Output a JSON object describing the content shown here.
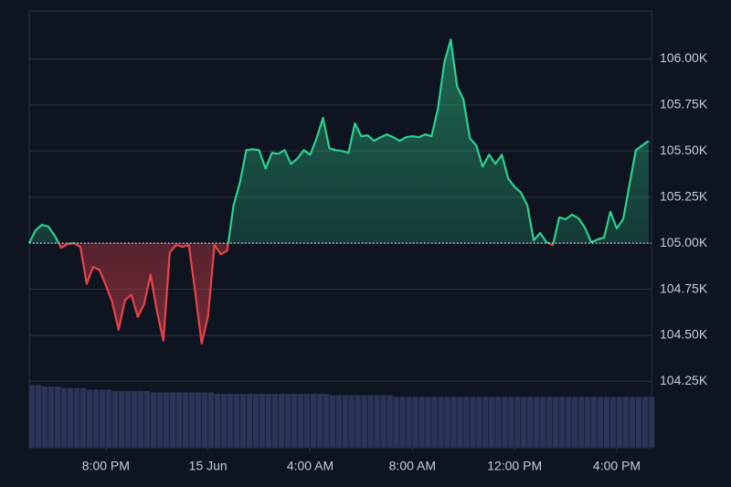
{
  "chart_data": {
    "type": "line",
    "x": [
      -7,
      -6.75,
      -6.5,
      -6.25,
      -6,
      -5.75,
      -5.5,
      -5.25,
      -5,
      -4.75,
      -4.5,
      -4.25,
      -4,
      -3.75,
      -3.5,
      -3.25,
      -3,
      -2.75,
      -2.5,
      -2.25,
      -2,
      -1.75,
      -1.5,
      -1.25,
      -1,
      -0.75,
      -0.5,
      -0.25,
      0,
      0.25,
      0.5,
      0.75,
      1,
      1.25,
      1.5,
      1.75,
      2,
      2.25,
      2.5,
      2.75,
      3,
      3.25,
      3.5,
      3.75,
      4,
      4.25,
      4.5,
      4.75,
      5,
      5.25,
      5.5,
      5.75,
      6,
      6.25,
      6.5,
      6.75,
      7,
      7.25,
      7.5,
      7.75,
      8,
      8.25,
      8.5,
      8.75,
      9,
      9.25,
      9.5,
      9.75,
      10,
      10.25,
      10.5,
      10.75,
      11,
      11.25,
      11.5,
      11.75,
      12,
      12.25,
      12.5,
      12.75,
      13,
      13.25,
      13.5,
      13.75,
      14,
      14.25,
      14.5,
      14.75,
      15,
      15.25,
      15.5,
      15.75,
      16,
      16.25,
      16.5,
      16.75,
      17,
      17.25
    ],
    "series": [
      {
        "color": "#2fd08c",
        "axis": "y",
        "values": [
          105000,
          105070,
          105100,
          105090,
          105040,
          104975,
          104995,
          105000,
          104980,
          104780,
          104870,
          104855,
          104770,
          104680,
          104530,
          104690,
          104720,
          104600,
          104670,
          104830,
          104630,
          104470,
          104950,
          104990,
          104980,
          104990,
          104730,
          104455,
          104605,
          104990,
          104940,
          104960,
          105205,
          105330,
          105505,
          105510,
          105505,
          105405,
          105490,
          105485,
          105505,
          105430,
          105460,
          105505,
          105480,
          105570,
          105680,
          105515,
          105505,
          105500,
          105490,
          105650,
          105580,
          105585,
          105555,
          105575,
          105590,
          105575,
          105555,
          105575,
          105580,
          105575,
          105590,
          105580,
          105730,
          105980,
          106105,
          105850,
          105780,
          105570,
          105530,
          105415,
          105480,
          105430,
          105480,
          105350,
          105305,
          105275,
          105205,
          105015,
          105055,
          105005,
          104990,
          105140,
          105130,
          105155,
          105135,
          105085,
          105005,
          105020,
          105030,
          105170,
          105080,
          105130,
          105320,
          105505,
          105530,
          105555
        ]
      },
      {
        "color": "#2b3459",
        "axis": "y2",
        "values": [
          43,
          43,
          42,
          42,
          42,
          41,
          41,
          41,
          41,
          40,
          40,
          40,
          40,
          39,
          39,
          39,
          39,
          39,
          39,
          38,
          38,
          38,
          38,
          38,
          38,
          38,
          38,
          38,
          38,
          37,
          37,
          37,
          37,
          37,
          37,
          37,
          37,
          37,
          37,
          37,
          37,
          37,
          37,
          37,
          37,
          37,
          37,
          36,
          36,
          36,
          36,
          36,
          36,
          36,
          36,
          36,
          36,
          35,
          35,
          35,
          35,
          35,
          35,
          35,
          35,
          35,
          35,
          35,
          35,
          35,
          35,
          35,
          35,
          35,
          35,
          35,
          35,
          35,
          35,
          35,
          35,
          35,
          35,
          35,
          35,
          35,
          35,
          35,
          35,
          35,
          35,
          35,
          35,
          35,
          35,
          35,
          35,
          35
        ]
      }
    ],
    "below_color": "#e8434a",
    "baseline": 105000,
    "xlim": [
      -7,
      17.36
    ],
    "xticks": [
      {
        "value": -4,
        "label": "8:00 PM"
      },
      {
        "value": 0,
        "label": "15 Jun"
      },
      {
        "value": 4,
        "label": "4:00 AM"
      },
      {
        "value": 8,
        "label": "8:00 AM"
      },
      {
        "value": 12,
        "label": "12:00 PM"
      },
      {
        "value": 16,
        "label": "4:00 PM"
      }
    ],
    "ylim": [
      103890,
      106260
    ],
    "yticks": [
      {
        "value": 104250,
        "label": "104.25K"
      },
      {
        "value": 104500,
        "label": "104.50K"
      },
      {
        "value": 104750,
        "label": "104.75K"
      },
      {
        "value": 105000,
        "label": "105.00K"
      },
      {
        "value": 105250,
        "label": "105.25K"
      },
      {
        "value": 105500,
        "label": "105.50K"
      },
      {
        "value": 105750,
        "label": "105.75K"
      },
      {
        "value": 106000,
        "label": "106.00K"
      }
    ],
    "y2lim": [
      0,
      300
    ],
    "grid": true
  }
}
